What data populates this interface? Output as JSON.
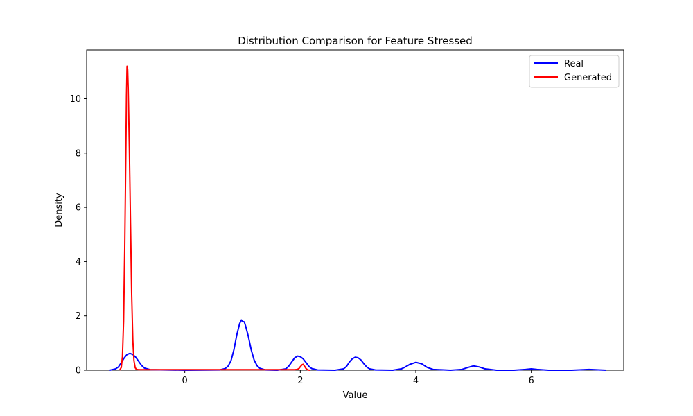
{
  "chart_data": {
    "type": "line",
    "title": "Distribution Comparison for Feature Stressed",
    "xlabel": "Value",
    "ylabel": "Density",
    "xlim": [
      -1.7,
      7.6
    ],
    "ylim": [
      0,
      11.8
    ],
    "xticks": [
      0,
      2,
      4,
      6
    ],
    "yticks": [
      0,
      2,
      4,
      6,
      8,
      10
    ],
    "grid": false,
    "legend_position": "top-right",
    "series": [
      {
        "name": "Real",
        "color": "#0000ff",
        "x": [
          -1.3,
          -1.2,
          -1.15,
          -1.1,
          -1.05,
          -1.0,
          -0.95,
          -0.9,
          -0.85,
          -0.8,
          -0.75,
          -0.7,
          -0.6,
          0.0,
          0.6,
          0.7,
          0.75,
          0.8,
          0.85,
          0.9,
          0.95,
          0.98,
          1.0,
          1.03,
          1.05,
          1.1,
          1.15,
          1.2,
          1.25,
          1.3,
          1.4,
          1.6,
          1.75,
          1.8,
          1.85,
          1.9,
          1.95,
          2.0,
          2.05,
          2.1,
          2.15,
          2.2,
          2.3,
          2.6,
          2.75,
          2.8,
          2.85,
          2.9,
          2.95,
          3.0,
          3.05,
          3.1,
          3.15,
          3.2,
          3.3,
          3.6,
          3.75,
          3.8,
          3.9,
          4.0,
          4.1,
          4.2,
          4.3,
          4.6,
          4.8,
          4.9,
          5.0,
          5.1,
          5.2,
          5.4,
          5.7,
          5.9,
          6.0,
          6.1,
          6.3,
          6.7,
          6.9,
          7.0,
          7.1,
          7.3
        ],
        "values": [
          0.0,
          0.05,
          0.12,
          0.28,
          0.45,
          0.58,
          0.62,
          0.58,
          0.48,
          0.33,
          0.18,
          0.08,
          0.02,
          0.0,
          0.01,
          0.06,
          0.15,
          0.35,
          0.75,
          1.3,
          1.72,
          1.85,
          1.8,
          1.78,
          1.65,
          1.25,
          0.75,
          0.38,
          0.17,
          0.07,
          0.01,
          0.0,
          0.05,
          0.15,
          0.3,
          0.45,
          0.52,
          0.5,
          0.42,
          0.28,
          0.14,
          0.06,
          0.01,
          0.0,
          0.05,
          0.14,
          0.3,
          0.42,
          0.48,
          0.46,
          0.38,
          0.24,
          0.12,
          0.05,
          0.01,
          0.0,
          0.05,
          0.1,
          0.22,
          0.29,
          0.24,
          0.1,
          0.03,
          0.0,
          0.03,
          0.1,
          0.16,
          0.12,
          0.05,
          0.0,
          0.0,
          0.03,
          0.05,
          0.03,
          0.0,
          0.0,
          0.02,
          0.03,
          0.02,
          0.0
        ]
      },
      {
        "name": "Generated",
        "color": "#ff0000",
        "x": [
          -1.13,
          -1.1,
          -1.08,
          -1.06,
          -1.04,
          -1.02,
          -1.01,
          -1.0,
          -0.99,
          -0.98,
          -0.96,
          -0.94,
          -0.92,
          -0.9,
          -0.88,
          -0.86,
          -0.84,
          -0.8,
          -0.5,
          0.0,
          1.0,
          1.9,
          1.95,
          1.98,
          2.0,
          2.03,
          2.05,
          2.07,
          2.1,
          2.13,
          2.17
        ],
        "values": [
          0.0,
          0.1,
          0.5,
          1.8,
          4.5,
          8.2,
          10.1,
          11.2,
          11.1,
          10.4,
          8.2,
          5.4,
          2.8,
          1.1,
          0.35,
          0.1,
          0.03,
          0.02,
          0.02,
          0.02,
          0.02,
          0.02,
          0.03,
          0.07,
          0.13,
          0.2,
          0.22,
          0.16,
          0.06,
          0.01,
          0.0
        ]
      }
    ]
  }
}
